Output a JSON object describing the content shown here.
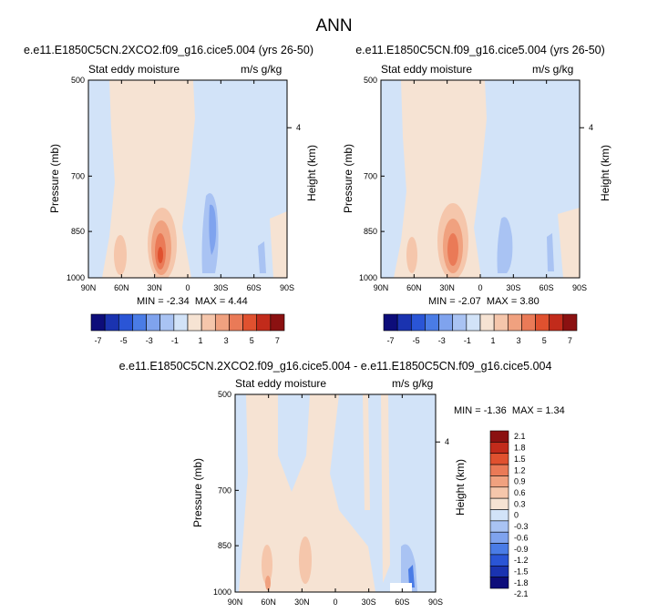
{
  "title": "ANN",
  "colors": {
    "palette": [
      "#0d0d7a",
      "#1a33b0",
      "#2a55d6",
      "#4a7ce6",
      "#7fa3ee",
      "#a9c3f3",
      "#d2e3f8",
      "#f6e3d3",
      "#f5c6ab",
      "#f0a17f",
      "#ea7a57",
      "#e0512f",
      "#c22b1b",
      "#8b1111"
    ],
    "frame": "#000000"
  },
  "chart_data": [
    {
      "type": "heatmap",
      "title": "e.e11.E1850C5CN.2XCO2.f09_g16.cice5.004 (yrs 26-50)",
      "left_string": "Stat eddy moisture",
      "right_string": "m/s g/kg",
      "xlabel": "",
      "ylabel": "Pressure (mb)",
      "ylabel_right": "Height (km)",
      "x_ticks": [
        "90N",
        "60N",
        "30N",
        "0",
        "30S",
        "60S",
        "90S"
      ],
      "y_ticks": [
        "500",
        "700",
        "850",
        "1000"
      ],
      "y_ticks_right": [
        "4"
      ],
      "min_label": "MIN =",
      "min_value": "-2.34",
      "max_label": "MAX =",
      "max_value": "4.44",
      "xlim": [
        90,
        -90
      ],
      "ylim": [
        1000,
        500
      ],
      "contour_levels": [
        -7,
        -6,
        -5,
        -4,
        -3,
        -2,
        -1,
        0,
        1,
        2,
        3,
        4,
        5,
        6,
        7
      ],
      "grid": false
    },
    {
      "type": "heatmap",
      "title": "e.e11.E1850C5CN.f09_g16.cice5.004 (yrs 26-50)",
      "left_string": "Stat eddy moisture",
      "right_string": "m/s g/kg",
      "xlabel": "",
      "ylabel": "Pressure (mb)",
      "ylabel_right": "Height (km)",
      "x_ticks": [
        "90N",
        "60N",
        "30N",
        "0",
        "30S",
        "60S",
        "90S"
      ],
      "y_ticks": [
        "500",
        "700",
        "850",
        "1000"
      ],
      "y_ticks_right": [
        "4"
      ],
      "min_label": "MIN =",
      "min_value": "-2.07",
      "max_label": "MAX =",
      "max_value": "3.80",
      "xlim": [
        90,
        -90
      ],
      "ylim": [
        1000,
        500
      ],
      "contour_levels": [
        -7,
        -6,
        -5,
        -4,
        -3,
        -2,
        -1,
        0,
        1,
        2,
        3,
        4,
        5,
        6,
        7
      ],
      "grid": false
    },
    {
      "type": "heatmap",
      "title": "e.e11.E1850C5CN.2XCO2.f09_g16.cice5.004 - e.e11.E1850C5CN.f09_g16.cice5.004",
      "left_string": "Stat eddy moisture",
      "right_string": "m/s g/kg",
      "xlabel": "",
      "ylabel": "Pressure (mb)",
      "ylabel_right": "Height (km)",
      "x_ticks": [
        "90N",
        "60N",
        "30N",
        "0",
        "30S",
        "60S",
        "90S"
      ],
      "y_ticks": [
        "500",
        "700",
        "850",
        "1000"
      ],
      "y_ticks_right": [
        "4"
      ],
      "min_label": "MIN =",
      "min_value": "-1.36",
      "max_label": "MAX =",
      "max_value": "1.34",
      "xlim": [
        90,
        -90
      ],
      "ylim": [
        1000,
        500
      ],
      "contour_levels": [
        -2.1,
        -1.8,
        -1.5,
        -1.2,
        -0.9,
        -0.6,
        -0.3,
        0,
        0.3,
        0.6,
        0.9,
        1.2,
        1.5,
        1.8,
        2.1
      ],
      "grid": false
    }
  ],
  "colorbar_top": {
    "labels": [
      "-7",
      "-5",
      "-3",
      "-1",
      "1",
      "3",
      "5",
      "7"
    ]
  },
  "colorbar_diff": {
    "labels": [
      "2.1",
      "1.8",
      "1.5",
      "1.2",
      "0.9",
      "0.6",
      "0.3",
      "0",
      "-0.3",
      "-0.6",
      "-0.9",
      "-1.2",
      "-1.5",
      "-1.8",
      "-2.1"
    ]
  }
}
